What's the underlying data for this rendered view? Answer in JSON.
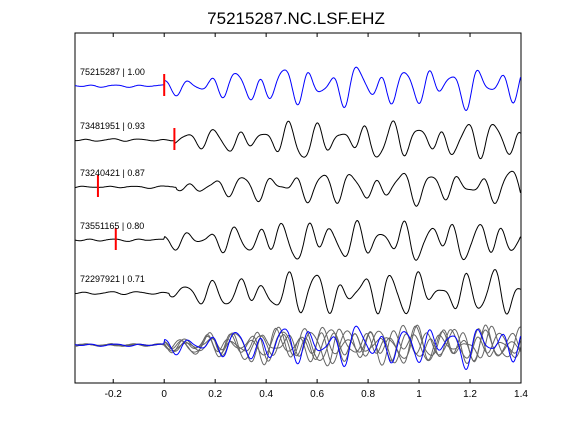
{
  "chart_data": {
    "type": "line",
    "title": "75215287.NC.LSF.EHZ",
    "xlabel": "",
    "ylabel": "",
    "xlim": [
      -0.35,
      1.4
    ],
    "xticks": [
      {
        "value": -0.2,
        "label": "-0.2"
      },
      {
        "value": 0,
        "label": "0"
      },
      {
        "value": 0.2,
        "label": "0.2"
      },
      {
        "value": 0.4,
        "label": "0.4"
      },
      {
        "value": 0.6,
        "label": "0.6"
      },
      {
        "value": 0.8,
        "label": "0.8"
      },
      {
        "value": 1,
        "label": "1"
      },
      {
        "value": 1.2,
        "label": "1.2"
      },
      {
        "value": 1.4,
        "label": "1.4"
      }
    ],
    "grid": false,
    "traces": [
      {
        "label": "75215287 | 1.00",
        "pick_time": 0.0,
        "color": "#0000ff"
      },
      {
        "label": "73481951 | 0.93",
        "pick_time": 0.04,
        "color": "#000000"
      },
      {
        "label": "73240421 | 0.87",
        "pick_time": -0.26,
        "color": "#000000"
      },
      {
        "label": "73551165 | 0.80",
        "pick_time": -0.19,
        "color": "#000000"
      },
      {
        "label": "72297921 | 0.71",
        "pick_time": null,
        "color": "#000000"
      }
    ],
    "stack": {
      "overlay_colors": [
        "#0000ff",
        "#666666"
      ]
    },
    "colors": {
      "pick": "#ff0000",
      "primary": "#0000ff",
      "trace": "#000000",
      "overlay": "#666666"
    }
  }
}
